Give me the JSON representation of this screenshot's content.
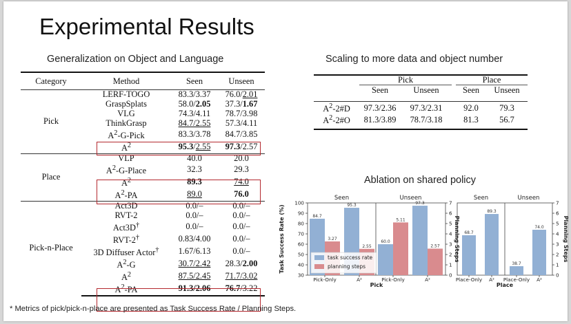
{
  "title": "Experimental Results",
  "left_subtitle": "Generalization on Object and Language",
  "right_subtitle": "Scaling to more data and object number",
  "ablation_subtitle": "Ablation on shared policy",
  "footnote": "* Metrics of pick/pick-n-place are presented as Task Success Rate / Planning Steps.",
  "results_table": {
    "headers": {
      "category": "Category",
      "method": "Method",
      "seen": "Seen",
      "unseen": "Unseen"
    },
    "groups": {
      "pick": {
        "category": "Pick",
        "rows": [
          {
            "method": "LERF-TOGO",
            "seen": "83.3/3.37",
            "unseen_a": "76.0/",
            "unseen_b": "2.01"
          },
          {
            "method": "GraspSplats",
            "seen_a": "58.0/",
            "seen_b": "2.05",
            "unseen_a": "37.3/",
            "unseen_b": "1.67"
          },
          {
            "method": "VLG",
            "seen": "74.3/4.11",
            "unseen": "78.7/3.98"
          },
          {
            "method": "ThinkGrasp",
            "seen": "84.7/2.55",
            "unseen": "57.3/4.11"
          },
          {
            "method_base": "A",
            "method_sup": "2",
            "method_rest": "-G-Pick",
            "seen": "83.3/3.78",
            "unseen": "84.7/3.85"
          },
          {
            "method_base": "A",
            "method_sup": "2",
            "seen_a": "95.3",
            "seen_b": "/",
            "seen_c": "2.55",
            "unseen_a": "97.3",
            "unseen_b": "/2.57"
          }
        ]
      },
      "place": {
        "category": "Place",
        "rows": [
          {
            "method": "VLP",
            "seen": "40.0",
            "unseen": "20.0"
          },
          {
            "method_base": "A",
            "method_sup": "2",
            "method_rest": "-G-Place",
            "seen": "32.3",
            "unseen": "29.3"
          },
          {
            "method_base": "A",
            "method_sup": "2",
            "seen": "89.3",
            "unseen": "74.0"
          },
          {
            "method_base": "A",
            "method_sup": "2",
            "method_rest": "-PA",
            "seen": "89.0",
            "unseen": "76.0"
          }
        ]
      },
      "pnp": {
        "category": "Pick-n-Place",
        "rows": [
          {
            "method": "Act3D",
            "seen": "0.0/–",
            "unseen": "0.0/–"
          },
          {
            "method": "RVT-2",
            "seen": "0.0/–",
            "unseen": "0.0/–"
          },
          {
            "method": "Act3D",
            "dagger": "†",
            "seen": "0.0/–",
            "unseen": "0.0/–"
          },
          {
            "method": "RVT-2",
            "dagger": "†",
            "seen": "0.83/4.00",
            "unseen": "0.0/–"
          },
          {
            "method": "3D Diffuser Actor",
            "dagger": "†",
            "seen": "1.67/6.13",
            "unseen": "0.0/–"
          },
          {
            "method_base": "A",
            "method_sup": "2",
            "method_rest": "-G",
            "seen": "30.7/2.42",
            "unseen_a": "28.3/",
            "unseen_b": "2.00"
          },
          {
            "method_base": "A",
            "method_sup": "2",
            "seen": "87.5/2.45",
            "unseen": "71.7/3.02"
          },
          {
            "method_base": "A",
            "method_sup": "2",
            "method_rest": "-PA",
            "seen": "91.3/2.06",
            "unseen_a": "76.7",
            "unseen_b": "/3.22"
          }
        ]
      }
    }
  },
  "scaling_table": {
    "pick": "Pick",
    "place": "Place",
    "seen": "Seen",
    "unseen": "Unseen",
    "rows": [
      {
        "method": "A",
        "sup": "2",
        "rest": "-2#D",
        "pick_seen": "97.3/2.36",
        "pick_unseen": "97.3/2.31",
        "place_seen": "92.0",
        "place_unseen": "79.3"
      },
      {
        "method": "A",
        "sup": "2",
        "rest": "-2#O",
        "pick_seen": "81.3/3.89",
        "pick_unseen": "78.7/3.18",
        "place_seen": "81.3",
        "place_unseen": "56.7"
      }
    ]
  },
  "chart_data": [
    {
      "type": "bar",
      "panel": "Pick",
      "xlabel": "Pick",
      "ylabel": "Task Success Rate (%)",
      "y2label": "Planning Steps",
      "ylim": [
        30,
        100
      ],
      "y2lim": [
        0,
        7
      ],
      "groups": [
        "Seen",
        "Unseen"
      ],
      "categories": [
        "Pick-Only",
        "A²",
        "Pick-Only",
        "A²"
      ],
      "series": [
        {
          "name": "task success rate",
          "axis": "left",
          "color": "#92b0d4",
          "values": [
            84.7,
            95.3,
            60.0,
            97.3
          ]
        },
        {
          "name": "planning steps",
          "axis": "right",
          "color": "#d98b8e",
          "values": [
            3.27,
            2.55,
            5.11,
            2.57
          ]
        }
      ],
      "legend": "bottom-left"
    },
    {
      "type": "bar",
      "panel": "Place",
      "xlabel": "Place",
      "ylabel": "",
      "y2label": "Planning Steps",
      "ylim": [
        30,
        100
      ],
      "y2lim": [
        0,
        7
      ],
      "groups": [
        "Seen",
        "Unseen"
      ],
      "categories": [
        "Place-Only",
        "A²",
        "Place-Only",
        "A²"
      ],
      "series": [
        {
          "name": "task success rate",
          "axis": "left",
          "color": "#92b0d4",
          "values": [
            68.7,
            89.3,
            38.7,
            74.0
          ]
        }
      ]
    }
  ]
}
